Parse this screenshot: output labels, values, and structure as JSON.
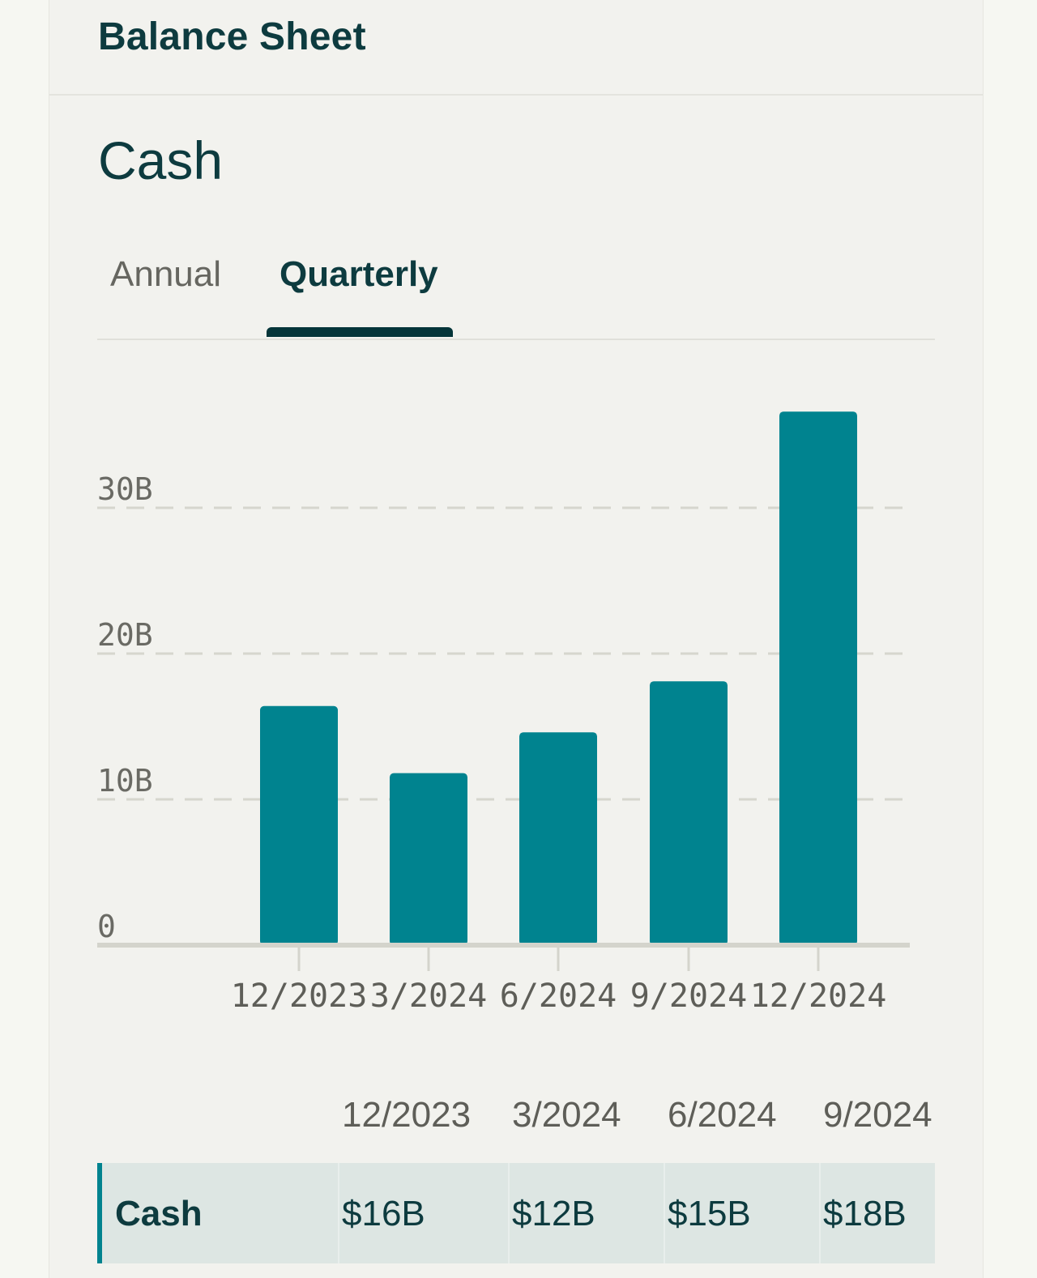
{
  "card": {
    "title": "Balance Sheet"
  },
  "section": {
    "title": "Cash"
  },
  "tabs": [
    {
      "label": "Annual",
      "selected": false
    },
    {
      "label": "Quarterly",
      "selected": true
    }
  ],
  "colors": {
    "bar": "#00838f",
    "title": "#0d3b3f",
    "tab_underline": "#053539",
    "grid": "#d6d6ce",
    "row_bg": "#dde6e3"
  },
  "chart_data": {
    "type": "bar",
    "categories": [
      "12/2023",
      "3/2024",
      "6/2024",
      "9/2024",
      "12/2024"
    ],
    "values": [
      16.4,
      11.8,
      14.6,
      18.1,
      36.6
    ],
    "yticks": [
      0,
      10,
      20,
      30
    ],
    "ytick_labels": [
      "0",
      "10B",
      "20B",
      "30B"
    ],
    "ylim": [
      0,
      40
    ],
    "title": "",
    "xlabel": "",
    "ylabel": "",
    "grid": true
  },
  "table": {
    "headers": [
      "12/2023",
      "3/2024",
      "6/2024",
      "9/2024"
    ],
    "rows": [
      {
        "label": "Cash",
        "values": [
          "$16B",
          "$12B",
          "$15B",
          "$18B"
        ]
      }
    ]
  }
}
